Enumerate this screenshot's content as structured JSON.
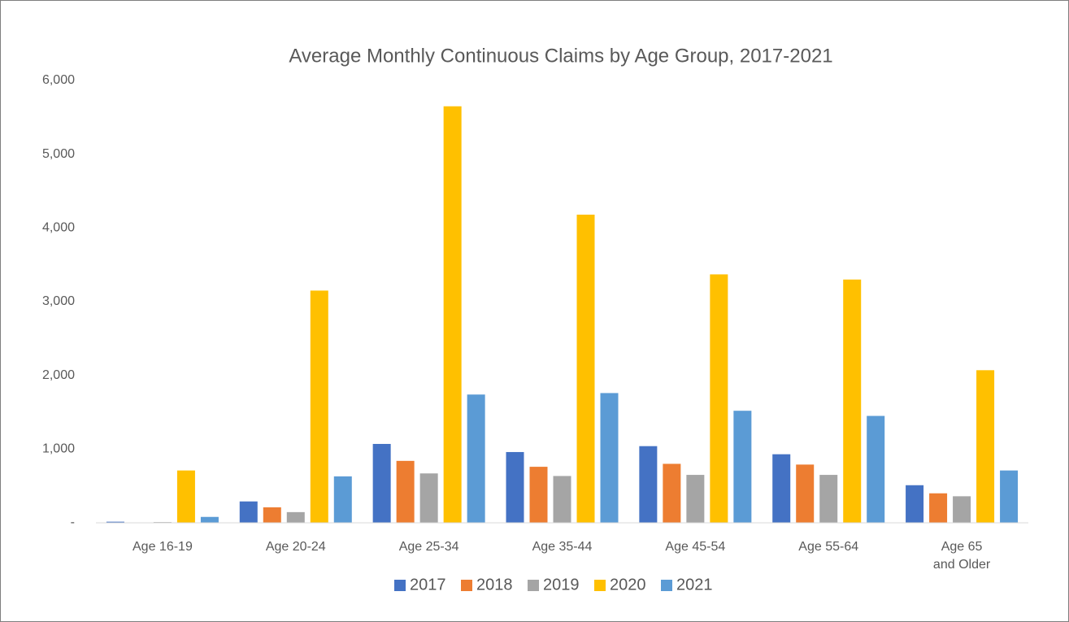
{
  "chart_data": {
    "type": "bar",
    "title": "Average Monthly Continuous Claims by Age Group, 2017-2021",
    "categories": [
      "Age 16-19",
      "Age 20-24",
      "Age 25-34",
      "Age 35-44",
      "Age 45-54",
      "Age 55-64",
      "Age 65 and Older"
    ],
    "series": [
      {
        "name": "2017",
        "color": "#4472c4",
        "values": [
          15,
          290,
          1070,
          960,
          1040,
          930,
          510
        ]
      },
      {
        "name": "2018",
        "color": "#ed7d31",
        "values": [
          5,
          210,
          840,
          760,
          800,
          790,
          400
        ]
      },
      {
        "name": "2019",
        "color": "#a5a5a5",
        "values": [
          10,
          145,
          670,
          635,
          650,
          650,
          360
        ]
      },
      {
        "name": "2020",
        "color": "#ffc000",
        "values": [
          710,
          3150,
          5650,
          4180,
          3370,
          3300,
          2070
        ]
      },
      {
        "name": "2021",
        "color": "#5b9bd5",
        "values": [
          80,
          630,
          1740,
          1760,
          1520,
          1450,
          710
        ]
      }
    ],
    "ylim": [
      0,
      6000
    ],
    "yticks": [
      {
        "value": 0,
        "label": "-"
      },
      {
        "value": 1000,
        "label": "1,000"
      },
      {
        "value": 2000,
        "label": "2,000"
      },
      {
        "value": 3000,
        "label": "3,000"
      },
      {
        "value": 4000,
        "label": "4,000"
      },
      {
        "value": 5000,
        "label": "5,000"
      },
      {
        "value": 6000,
        "label": "6,000"
      }
    ],
    "grid": false,
    "legend": "bottom"
  }
}
